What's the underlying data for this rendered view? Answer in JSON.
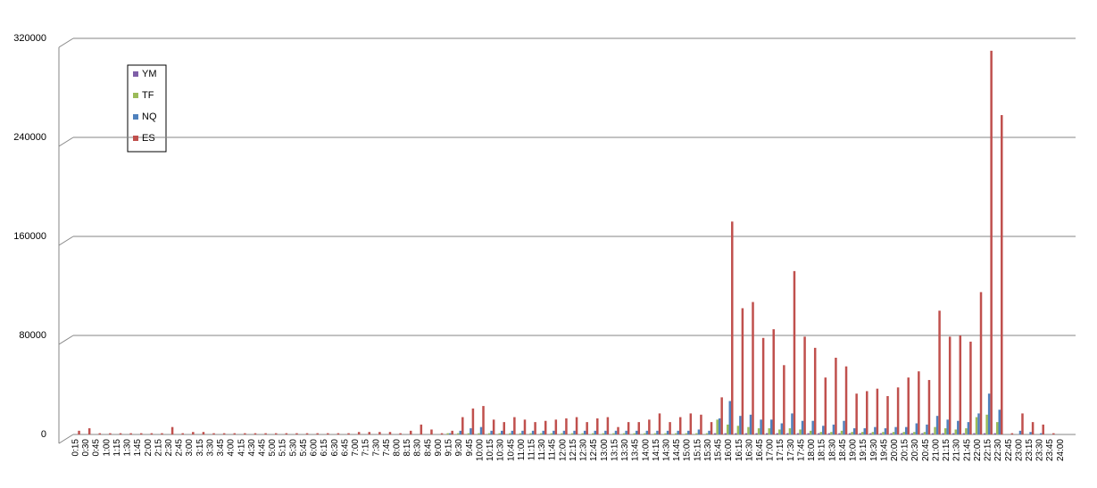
{
  "chart_data": {
    "type": "bar",
    "categories": [
      "0:15",
      "0:30",
      "0:45",
      "1:00",
      "1:15",
      "1:30",
      "1:45",
      "2:00",
      "2:15",
      "2:30",
      "2:45",
      "3:00",
      "3:15",
      "3:30",
      "3:45",
      "4:00",
      "4:15",
      "4:30",
      "4:45",
      "5:00",
      "5:15",
      "5:30",
      "5:45",
      "6:00",
      "6:15",
      "6:30",
      "6:45",
      "7:00",
      "7:15",
      "7:30",
      "7:45",
      "8:00",
      "8:15",
      "8:30",
      "8:45",
      "9:00",
      "9:15",
      "9:30",
      "9:45",
      "10:00",
      "10:15",
      "10:30",
      "10:45",
      "11:00",
      "11:15",
      "11:30",
      "11:45",
      "12:00",
      "12:15",
      "12:30",
      "12:45",
      "13:00",
      "13:15",
      "13:30",
      "13:45",
      "14:00",
      "14:15",
      "14:30",
      "14:45",
      "15:00",
      "15:15",
      "15:30",
      "15:45",
      "16:00",
      "16:15",
      "16:30",
      "16:45",
      "17:00",
      "17:15",
      "17:30",
      "17:45",
      "18:00",
      "18:15",
      "18:30",
      "18:45",
      "19:00",
      "19:15",
      "19:30",
      "19:45",
      "20:00",
      "20:15",
      "20:30",
      "20:45",
      "21:00",
      "21:15",
      "21:30",
      "21:45",
      "22:00",
      "22:15",
      "22:30",
      "22:45",
      "23:00",
      "23:15",
      "23:30",
      "23:45",
      "24:00"
    ],
    "series": [
      {
        "name": "YM",
        "color": "#7f5fa8",
        "values": [
          0,
          0,
          0,
          0,
          0,
          0,
          0,
          0,
          0,
          0,
          0,
          0,
          0,
          0,
          0,
          0,
          0,
          0,
          0,
          0,
          0,
          0,
          0,
          0,
          0,
          0,
          0,
          0,
          0,
          0,
          0,
          0,
          0,
          0,
          0,
          0,
          0,
          0,
          0,
          0,
          0,
          0,
          0,
          0,
          0,
          0,
          0,
          0,
          0,
          0,
          0,
          0,
          0,
          0,
          0,
          0,
          0,
          0,
          0,
          0,
          0,
          0,
          1000,
          1000,
          1000,
          1000,
          1000,
          1000,
          1000,
          1000,
          1000,
          1000,
          1000,
          1000,
          1000,
          1000,
          1000,
          1000,
          1000,
          1000,
          1000,
          1000,
          1000,
          1000,
          1000,
          1000,
          1000,
          1000,
          1000,
          1000,
          0,
          0,
          0,
          0,
          0,
          0
        ]
      },
      {
        "name": "TF",
        "color": "#9bbb59",
        "values": [
          0,
          0,
          0,
          0,
          0,
          0,
          0,
          0,
          0,
          0,
          0,
          0,
          0,
          0,
          0,
          0,
          0,
          0,
          0,
          0,
          0,
          0,
          0,
          0,
          0,
          0,
          0,
          0,
          0,
          0,
          0,
          0,
          0,
          0,
          0,
          0,
          1000,
          1000,
          1000,
          1000,
          1000,
          1000,
          1000,
          1000,
          1000,
          1000,
          1000,
          1000,
          1000,
          1000,
          1000,
          1000,
          1000,
          1000,
          1000,
          1000,
          1000,
          1000,
          1000,
          1000,
          1000,
          1000,
          12000,
          8000,
          7000,
          6000,
          5000,
          5000,
          4000,
          5000,
          4000,
          3000,
          2000,
          2000,
          3000,
          2000,
          2000,
          2000,
          2000,
          2000,
          2000,
          2000,
          2000,
          6000,
          5000,
          4000,
          5000,
          14000,
          16000,
          10000,
          0,
          0,
          0,
          0,
          0,
          0
        ]
      },
      {
        "name": "NQ",
        "color": "#4f81bd",
        "values": [
          0,
          0,
          0,
          0,
          0,
          0,
          0,
          0,
          0,
          0,
          0,
          0,
          0,
          0,
          0,
          0,
          0,
          0,
          0,
          0,
          0,
          0,
          0,
          0,
          0,
          0,
          0,
          0,
          0,
          0,
          0,
          0,
          0,
          0,
          0,
          0,
          1000,
          3000,
          5000,
          6000,
          3000,
          3000,
          3000,
          3000,
          3000,
          3000,
          3000,
          3000,
          3000,
          3000,
          3000,
          3000,
          3000,
          3000,
          3000,
          3000,
          3000,
          3000,
          3000,
          3000,
          4000,
          3000,
          13000,
          27000,
          15000,
          16000,
          12000,
          12000,
          9000,
          17000,
          11000,
          11000,
          7000,
          8000,
          11000,
          5000,
          5000,
          6000,
          5000,
          6000,
          6000,
          9000,
          8000,
          15000,
          12000,
          11000,
          10000,
          17000,
          33000,
          20000,
          0,
          3000,
          2000,
          1000,
          0,
          0
        ]
      },
      {
        "name": "ES",
        "color": "#c0504d",
        "values": [
          3000,
          5000,
          1000,
          1000,
          1000,
          1000,
          1000,
          1000,
          1000,
          6000,
          1000,
          2000,
          2000,
          1000,
          1000,
          1000,
          1000,
          1000,
          1000,
          1000,
          1000,
          1000,
          1000,
          1000,
          1000,
          1000,
          1000,
          2000,
          2000,
          2000,
          2000,
          1000,
          3000,
          8000,
          4000,
          1000,
          3000,
          14000,
          21000,
          23000,
          12000,
          10000,
          14000,
          12000,
          10000,
          11000,
          12000,
          13000,
          14000,
          10000,
          13000,
          14000,
          6000,
          10000,
          10000,
          12000,
          17000,
          10000,
          14000,
          17000,
          16000,
          10000,
          30000,
          172000,
          102000,
          107000,
          78000,
          85000,
          56000,
          132000,
          79000,
          70000,
          46000,
          62000,
          55000,
          33000,
          35000,
          37000,
          31000,
          38000,
          46000,
          51000,
          44000,
          100000,
          79000,
          80000,
          75000,
          115000,
          310000,
          258000,
          1000,
          17000,
          10000,
          8000,
          1000,
          0
        ]
      }
    ],
    "ylim": [
      0,
      320000
    ],
    "yticks": [
      0,
      80000,
      160000,
      240000,
      320000
    ],
    "grid": true
  }
}
